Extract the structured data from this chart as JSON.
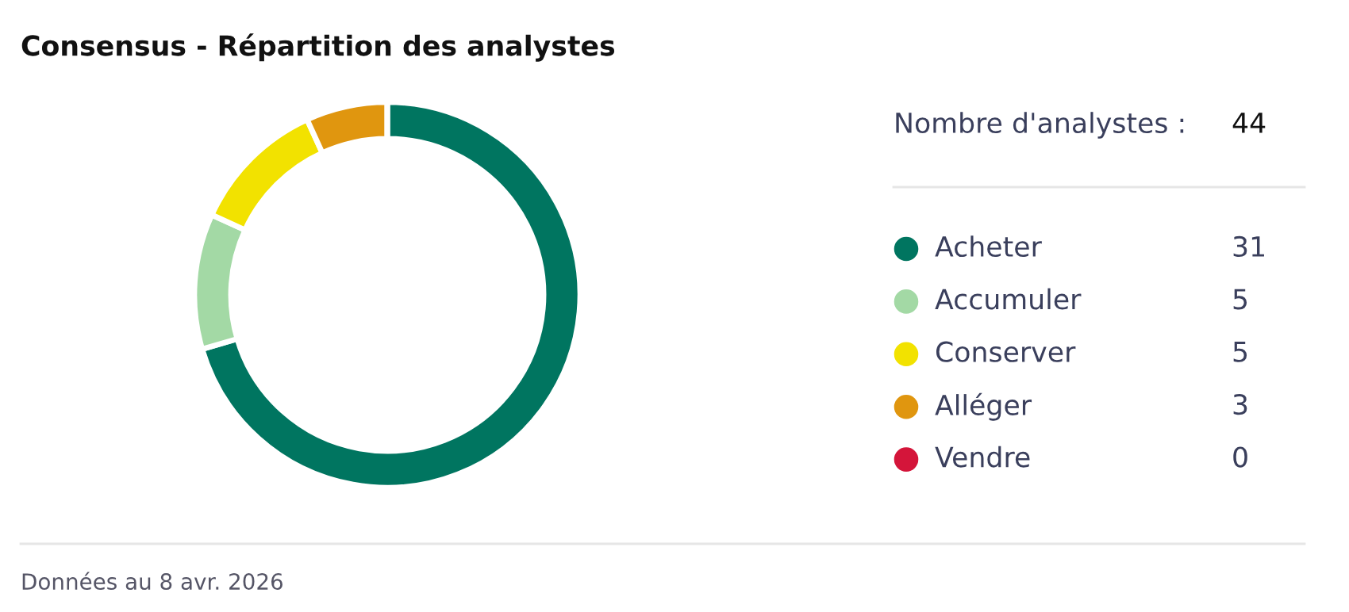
{
  "chart_data": {
    "type": "donut",
    "title": "Consensus - Répartition des analystes",
    "categories": [
      "Acheter",
      "Accumuler",
      "Conserver",
      "Alléger",
      "Vendre"
    ],
    "values": [
      31,
      5,
      5,
      3,
      0
    ],
    "colors": [
      "#007560",
      "#a3d9a5",
      "#f2e200",
      "#e0960f",
      "#d4153a"
    ],
    "legend": "right",
    "value_labels": [
      "31",
      "5",
      "5",
      "3",
      "0"
    ],
    "annotations": [
      "Nombre d'analystes :",
      "44",
      "Données au 8 avr. 2026"
    ]
  }
}
